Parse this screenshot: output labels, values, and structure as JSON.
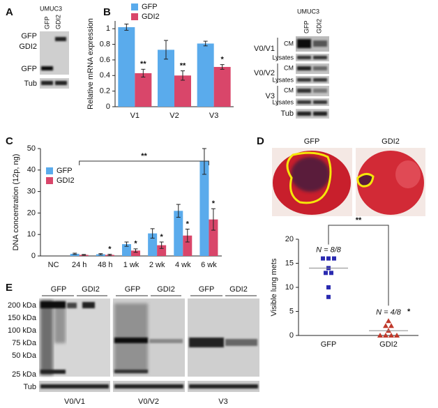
{
  "panel_labels": [
    "A",
    "B",
    "C",
    "D",
    "E"
  ],
  "blot_a": {
    "title": "UMUC3",
    "lanes": [
      "GFP",
      "GDI2"
    ],
    "rows": [
      "GFP",
      "GDI2",
      "GFP",
      "Tub"
    ]
  },
  "blot_b": {
    "title": "UMUC3",
    "lanes": [
      "GFP",
      "GDI2"
    ],
    "groups": [
      "V0/V1",
      "V0/V2",
      "V3"
    ],
    "rows": [
      "CM",
      "Lysates"
    ],
    "loading": "Tub"
  },
  "photos": {
    "labels": [
      "GFP",
      "GDI2"
    ]
  },
  "blot_e": {
    "lanes": [
      "GFP",
      "GDI2"
    ],
    "markers": [
      "200 kDa",
      "150 kDa",
      "100 kDa",
      "75 kDa",
      "50 kDa",
      "25 kDa"
    ],
    "loading": "Tub",
    "groups": [
      "V0/V1",
      "V0/V2",
      "V3"
    ]
  },
  "chart_data": [
    {
      "type": "bar",
      "y_label": "Relative mRNA expression",
      "categories": [
        "V1",
        "V2",
        "V3"
      ],
      "series": [
        {
          "name": "GFP",
          "color": "#5aabec",
          "values": [
            1.02,
            0.73,
            0.81
          ],
          "errors": [
            0.04,
            0.12,
            0.03
          ]
        },
        {
          "name": "GDI2",
          "color": "#d9466a",
          "values": [
            0.43,
            0.4,
            0.51
          ],
          "errors": [
            0.05,
            0.06,
            0.03
          ],
          "significance": [
            "**",
            "**",
            "*"
          ]
        }
      ],
      "ylim": [
        0,
        1.1
      ],
      "yticks": [
        0,
        0.2,
        0.4,
        0.6,
        0.8,
        1
      ],
      "legend": "upper left"
    },
    {
      "type": "bar",
      "y_label": "DNA concentration (12p, ng)",
      "categories": [
        "NC",
        "24 h",
        "48 h",
        "1 wk",
        "2 wk",
        "4 wk",
        "6 wk"
      ],
      "series": [
        {
          "name": "GFP",
          "color": "#5aabec",
          "values": [
            0,
            1,
            0.8,
            5.5,
            10.5,
            21,
            44
          ],
          "errors": [
            0,
            0.3,
            0.3,
            1,
            2.2,
            3,
            6
          ]
        },
        {
          "name": "GDI2",
          "color": "#d9466a",
          "values": [
            0,
            0.5,
            0.5,
            2.5,
            5,
            9.5,
            17
          ],
          "errors": [
            0,
            0.2,
            0.3,
            0.8,
            1.5,
            3,
            5
          ],
          "significance": [
            null,
            null,
            "*",
            "*",
            "*",
            "*",
            "*"
          ]
        }
      ],
      "ylim": [
        0,
        50
      ],
      "yticks": [
        0,
        10,
        20,
        30,
        40,
        50
      ],
      "legend": "upper left",
      "bracket_label": "**"
    },
    {
      "type": "scatter",
      "y_label": "Visible lung mets",
      "categories": [
        "GFP",
        "GDI2"
      ],
      "series": [
        {
          "color": "#2a2ab0",
          "marker": "square",
          "values": [
            16,
            16,
            16,
            14,
            13,
            13,
            10,
            8
          ],
          "mean": 14,
          "note": "N = 8/8"
        },
        {
          "color": "#c0392b",
          "marker": "triangle",
          "values": [
            3,
            2,
            2,
            1,
            0,
            0,
            0,
            0
          ],
          "mean": 1,
          "note": "N = 4/8",
          "significance": "*"
        }
      ],
      "ylim": [
        0,
        20
      ],
      "yticks": [
        0,
        5,
        10,
        15,
        20
      ],
      "bracket_label": "**"
    }
  ]
}
